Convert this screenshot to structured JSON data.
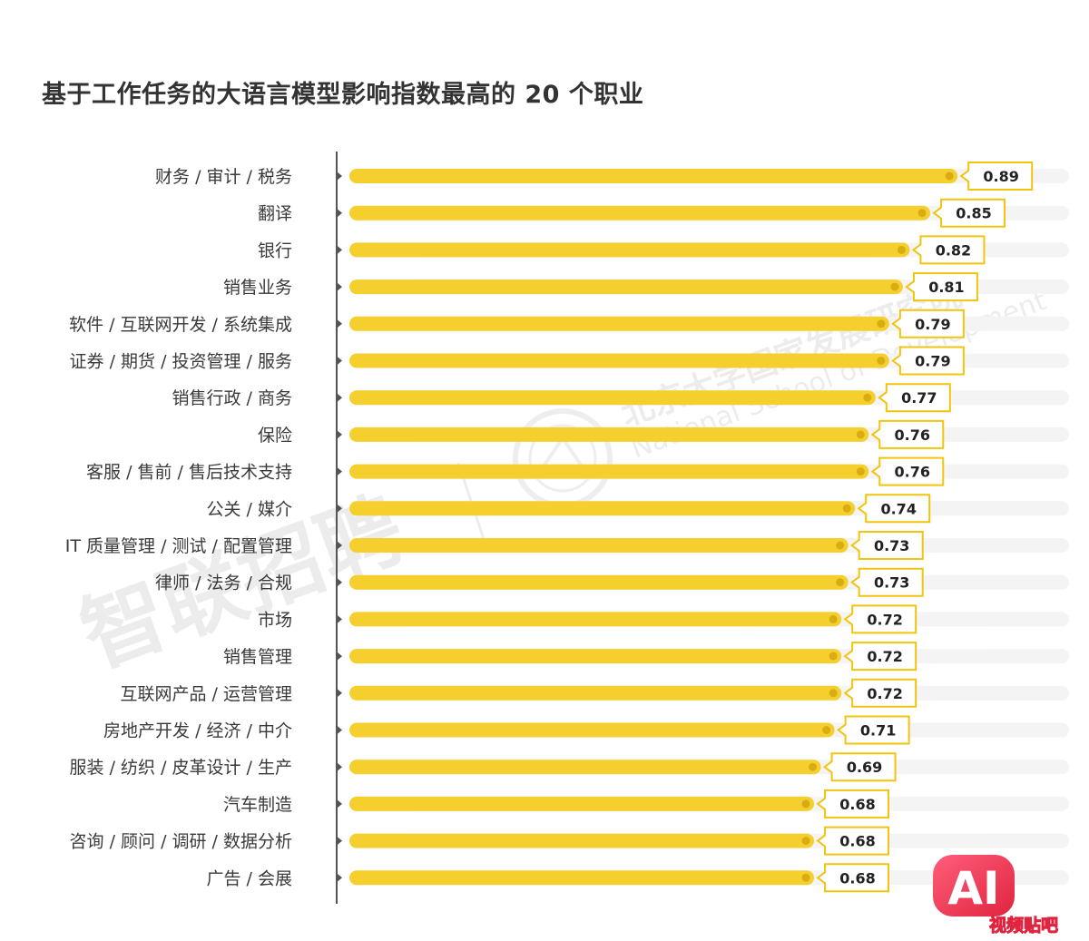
{
  "chart_data": {
    "type": "bar",
    "orientation": "horizontal",
    "title": "基于工作任务的大语言模型影响指数最高的 20 个职业",
    "categories": [
      "财务 / 审计 / 税务",
      "翻译",
      "银行",
      "销售业务",
      "软件 / 互联网开发 / 系统集成",
      "证券 / 期货 / 投资管理 / 服务",
      "销售行政 / 商务",
      "保险",
      "客服 / 售前 / 售后技术支持",
      "公关 / 媒介",
      "IT 质量管理 / 测试 / 配置管理",
      "律师 / 法务 / 合规",
      "市场",
      "销售管理",
      "互联网产品 / 运营管理",
      "房地产开发 / 经济 / 中介",
      "服装 / 纺织 / 皮革设计 / 生产",
      "汽车制造",
      "咨询 / 顾问 / 调研 / 数据分析",
      "广告 / 会展"
    ],
    "values": [
      0.89,
      0.85,
      0.82,
      0.81,
      0.79,
      0.79,
      0.77,
      0.76,
      0.76,
      0.74,
      0.73,
      0.73,
      0.72,
      0.72,
      0.72,
      0.71,
      0.69,
      0.68,
      0.68,
      0.68
    ],
    "value_labels": [
      "0.89",
      "0.85",
      "0.82",
      "0.81",
      "0.79",
      "0.79",
      "0.77",
      "0.76",
      "0.76",
      "0.74",
      "0.73",
      "0.73",
      "0.72",
      "0.72",
      "0.72",
      "0.71",
      "0.69",
      "0.68",
      "0.68",
      "0.68"
    ],
    "xlim": [
      0,
      1
    ],
    "grid": false,
    "legend": "none",
    "colors": {
      "bar": "#f5cf2e",
      "bar_dot": "#d9ad12",
      "track": "#f4f4f4",
      "axis": "#555555",
      "label_box_border": "#f1c40f"
    }
  },
  "watermarks": {
    "brand_text": "智联招聘",
    "institution_cn": "北京大学国家发展研究院",
    "institution_en": "National School of Development"
  },
  "badge": {
    "big_text": "AI",
    "small_text": "视频贴吧"
  }
}
